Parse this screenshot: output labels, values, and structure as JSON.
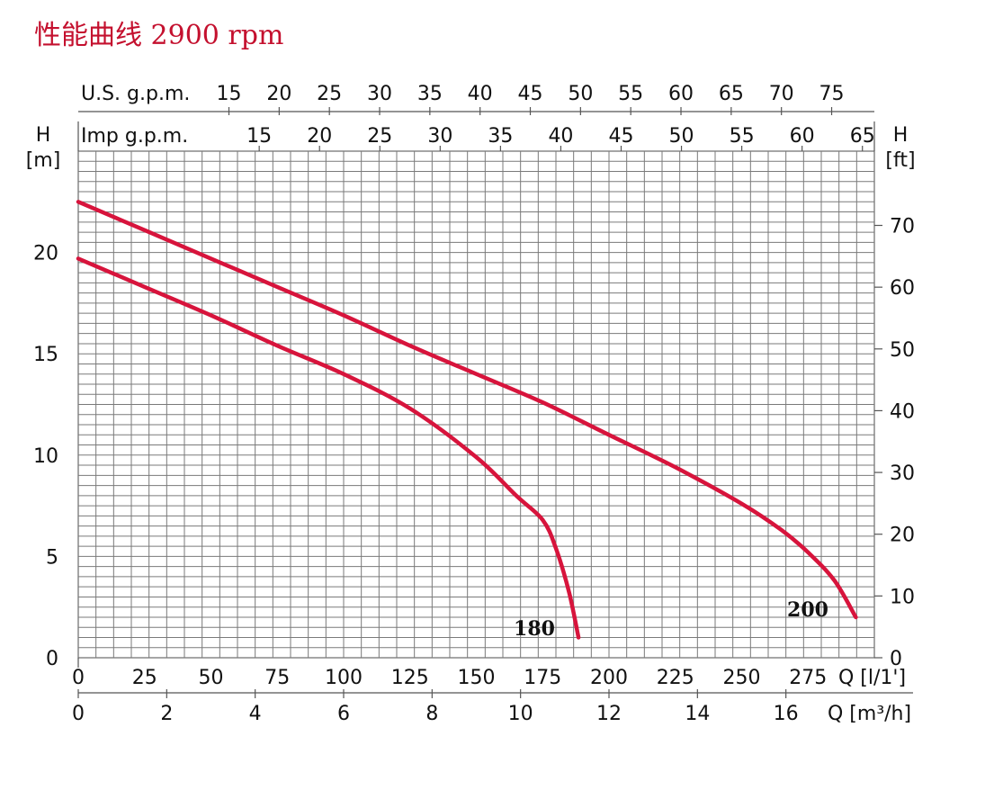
{
  "chart_data": {
    "type": "line",
    "title": "性能曲线 2900 rpm",
    "title_color": "#c4102e",
    "curve_color": "#d7143c",
    "grid": true,
    "x": {
      "label": "Q [l/1']",
      "lim": [
        0,
        300
      ],
      "ticks": [
        0,
        25,
        50,
        75,
        100,
        125,
        150,
        175,
        200,
        225,
        250,
        275
      ]
    },
    "x_m3h": {
      "label": "Q [m³/h]",
      "ticks": [
        0,
        2,
        4,
        6,
        8,
        10,
        12,
        14,
        16
      ]
    },
    "x_usgpm": {
      "label": "U.S. g.p.m.",
      "ticks": [
        15,
        20,
        25,
        30,
        35,
        40,
        45,
        50,
        55,
        60,
        65,
        70,
        75
      ]
    },
    "x_impgpm": {
      "label": "Imp g.p.m.",
      "ticks": [
        15,
        20,
        25,
        30,
        35,
        40,
        45,
        50,
        55,
        60,
        65
      ]
    },
    "y": {
      "label_top": "H",
      "label": "[m]",
      "lim": [
        0,
        25
      ],
      "ticks": [
        0,
        5,
        10,
        15,
        20
      ]
    },
    "y_ft": {
      "label_top": "H",
      "label": "[ft]",
      "ticks": [
        0,
        10,
        20,
        30,
        40,
        50,
        60,
        70
      ]
    },
    "series": [
      {
        "name": "180",
        "points": [
          [
            0,
            19.7
          ],
          [
            25,
            18.3
          ],
          [
            50,
            16.9
          ],
          [
            75,
            15.4
          ],
          [
            100,
            14.0
          ],
          [
            125,
            12.3
          ],
          [
            150,
            9.9
          ],
          [
            165,
            8.0
          ],
          [
            175,
            6.8
          ],
          [
            180,
            5.4
          ],
          [
            185,
            3.2
          ],
          [
            188.5,
            1.0
          ]
        ]
      },
      {
        "name": "200",
        "points": [
          [
            0,
            22.5
          ],
          [
            25,
            21.1
          ],
          [
            50,
            19.7
          ],
          [
            75,
            18.3
          ],
          [
            100,
            16.9
          ],
          [
            125,
            15.4
          ],
          [
            150,
            14.0
          ],
          [
            175,
            12.6
          ],
          [
            200,
            11.0
          ],
          [
            225,
            9.4
          ],
          [
            250,
            7.6
          ],
          [
            265,
            6.3
          ],
          [
            275,
            5.2
          ],
          [
            285,
            3.8
          ],
          [
            293,
            2.0
          ]
        ]
      }
    ]
  }
}
